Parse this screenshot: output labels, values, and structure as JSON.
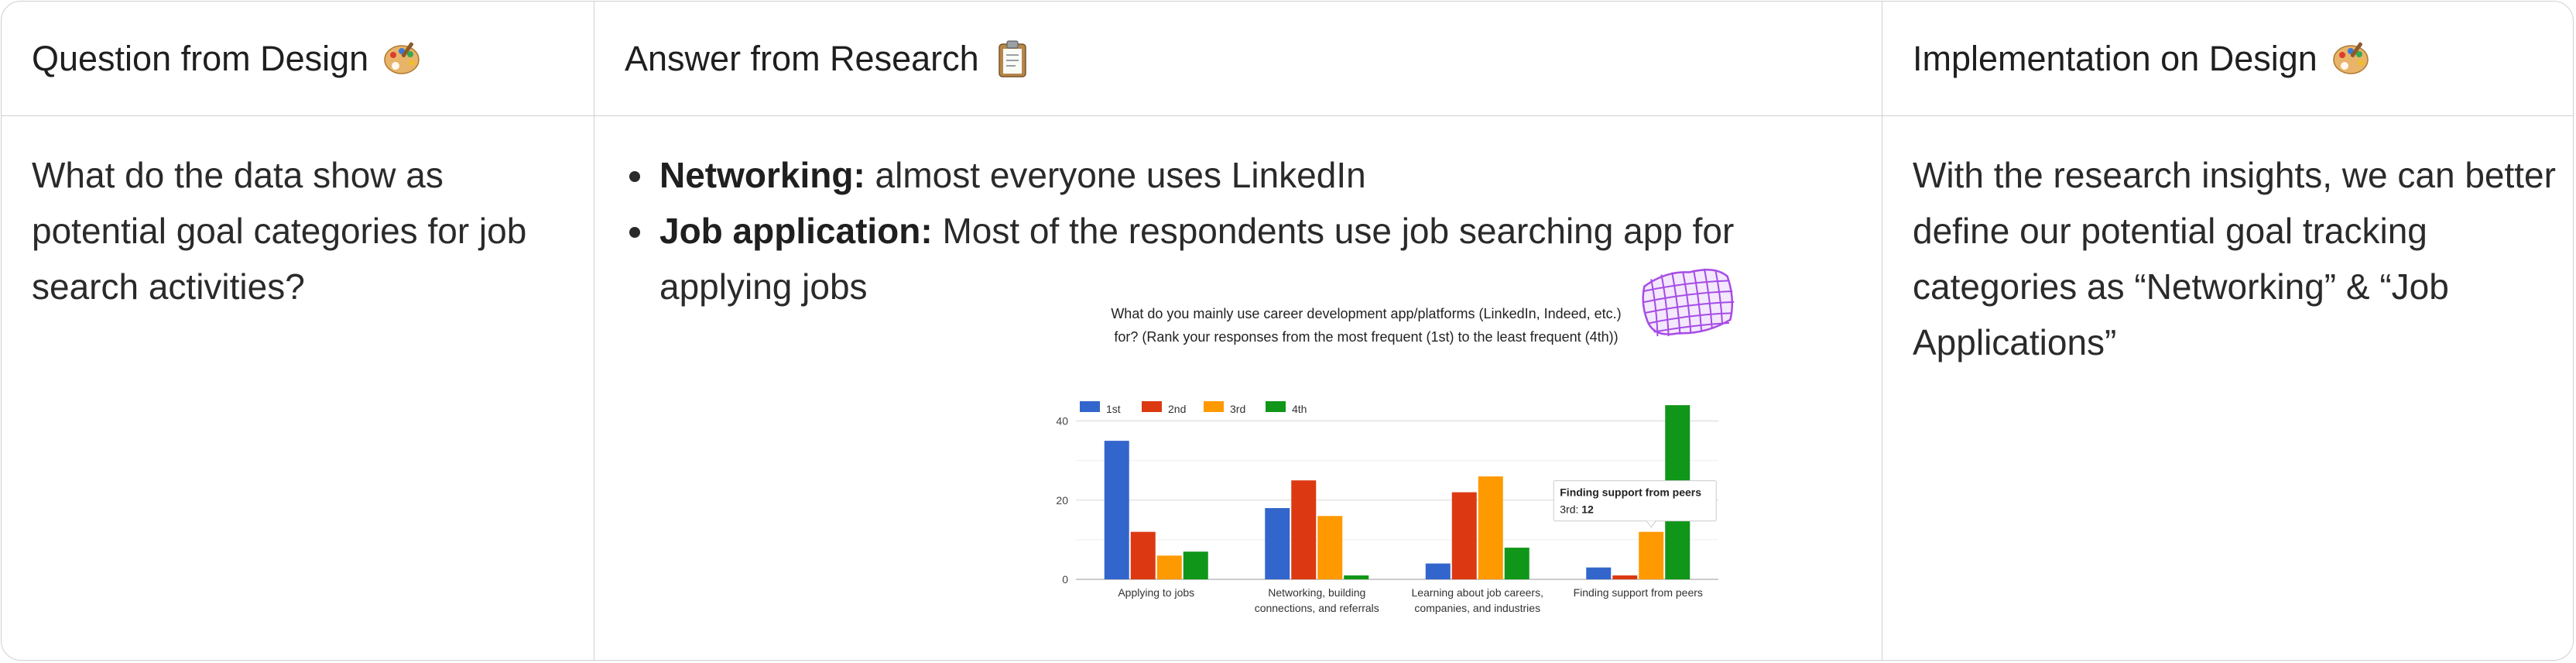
{
  "headers": {
    "design_question": "Question from Design",
    "research_answer": "Answer from Research",
    "implementation": "Implementation on Design"
  },
  "icons": {
    "design_question": "artist-palette-icon",
    "research_answer": "clipboard-icon",
    "implementation": "artist-palette-icon",
    "sticker": "purple-grid-sticker-icon"
  },
  "question_text": "What do the data show as potential goal categories for job search activities?",
  "answer_bullets": [
    {
      "title": "Networking:",
      "text": " almost everyone uses LinkedIn"
    },
    {
      "title": "Job application:",
      "text": " Most of the respondents use job searching app for applying jobs"
    }
  ],
  "implementation_text": "With the research insights, we can better define our potential goal tracking categories as “Networking” & “Job Applications”",
  "colors": {
    "series_1": "#3366cc",
    "series_2": "#dc3912",
    "series_3": "#ff9900",
    "series_4": "#109618",
    "sticker": "#a64ce6"
  },
  "chart_data": {
    "type": "bar",
    "title_lines": [
      "What do you mainly use career development app/platforms (LinkedIn, Indeed, etc.)",
      "for? (Rank your responses from the most frequent (1st) to the least frequent (4th))"
    ],
    "categories": [
      [
        "Applying to jobs"
      ],
      [
        "Networking, building",
        "connections, and referrals"
      ],
      [
        "Learning about job careers,",
        "companies, and industries"
      ],
      [
        "Finding support from peers"
      ]
    ],
    "series": [
      {
        "name": "1st",
        "values": [
          35,
          18,
          4,
          3
        ]
      },
      {
        "name": "2nd",
        "values": [
          12,
          25,
          22,
          1
        ]
      },
      {
        "name": "3rd",
        "values": [
          6,
          16,
          26,
          12
        ]
      },
      {
        "name": "4th",
        "values": [
          7,
          1,
          8,
          44
        ]
      }
    ],
    "yticks": [
      0,
      20,
      40
    ],
    "ylim": [
      0,
      45
    ],
    "legend_position": "top-left",
    "tooltip": {
      "title": "Finding support from peers",
      "label": "3rd:",
      "value": "12",
      "series_index": 2,
      "category_index": 3
    }
  }
}
